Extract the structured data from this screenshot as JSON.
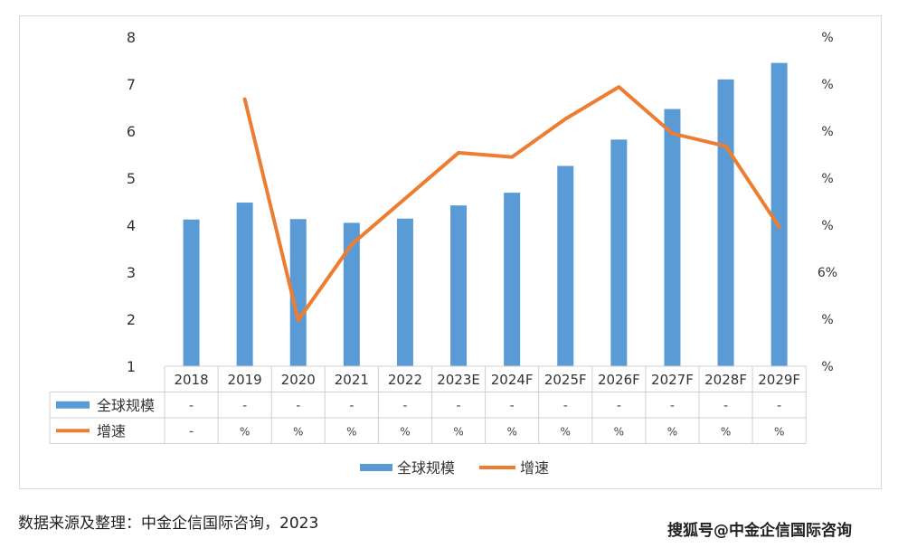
{
  "chart_data": {
    "type": "bar",
    "categories": [
      "2018",
      "2019",
      "2020",
      "2021",
      "2022",
      "2023E",
      "2024F",
      "2025F",
      "2026F",
      "2027F",
      "2028F",
      "2029F"
    ],
    "series": [
      {
        "name": "全球规模",
        "kind": "bar",
        "axis": "left",
        "color": "#5b9bd5",
        "values": [
          4.12,
          4.48,
          4.13,
          4.05,
          4.14,
          4.42,
          4.69,
          5.26,
          5.82,
          6.47,
          7.1,
          7.45
        ]
      },
      {
        "name": "增速",
        "kind": "line",
        "axis": "right",
        "color": "#ed7d31",
        "values": [
          null,
          6.68,
          1.98,
          3.59,
          null,
          5.54,
          5.45,
          6.26,
          6.94,
          5.95,
          5.68,
          3.96
        ]
      }
    ],
    "ylim": [
      1,
      8
    ],
    "y_ticks": [
      "1",
      "2",
      "3",
      "4",
      "5",
      "6",
      "7",
      "8"
    ],
    "y2_ticks": [
      "%",
      "%",
      "6%",
      "%",
      "%",
      "%",
      "%",
      "%"
    ],
    "legend": {
      "position": "bottom"
    },
    "table": {
      "rows": [
        {
          "label": "全球规模",
          "cells": [
            "-",
            "-",
            "-",
            "-",
            "-",
            "-",
            "-",
            "-",
            "-",
            "-",
            "-",
            "-"
          ]
        },
        {
          "label": "增速",
          "cells": [
            "-",
            "%",
            "%",
            "%",
            "%",
            "%",
            "%",
            "%",
            "%",
            "%",
            "%",
            "%"
          ]
        }
      ]
    }
  },
  "footer": {
    "source": "数据来源及整理：中金企信国际咨询，2023",
    "watermark": "搜狐号@中金企信国际咨询"
  }
}
